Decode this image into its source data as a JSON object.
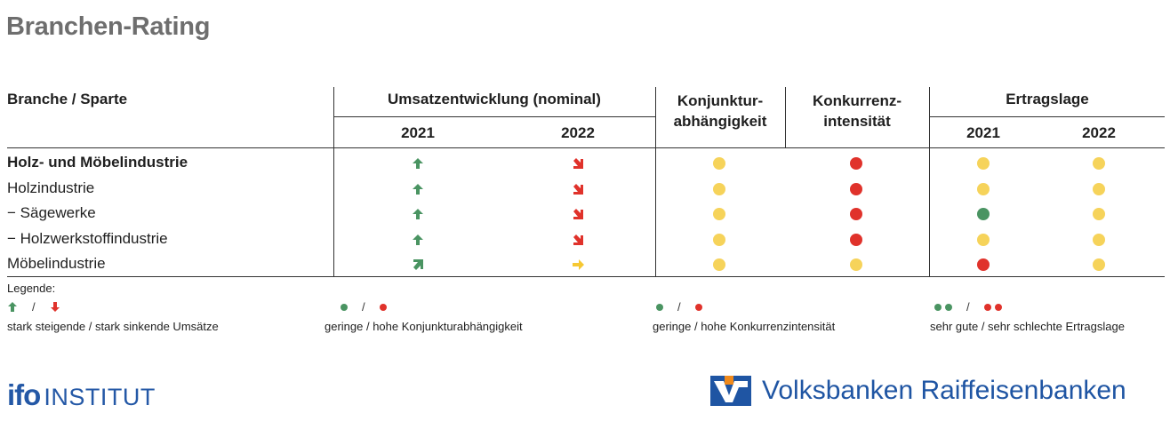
{
  "title": "Branchen-Rating",
  "header": {
    "branche": "Branche / Sparte",
    "umsatz": "Umsatzentwicklung (nominal)",
    "umsatz_2021": "2021",
    "umsatz_2022": "2022",
    "konjunktur": "Konjunktur-\nabhängigkeit",
    "konkurrenz": "Konkurrenz-\nintensität",
    "ertrag": "Ertragslage",
    "ertrag_2021": "2021",
    "ertrag_2022": "2022"
  },
  "rows": [
    {
      "label": "Holz- und Möbelindustrie",
      "bold": true,
      "u2021": "up",
      "u2022": "down-right",
      "konjunktur": "yellow",
      "konkurrenz": "red",
      "e2021": "yellow",
      "e2022": "yellow"
    },
    {
      "label": "Holzindustrie",
      "bold": false,
      "u2021": "up",
      "u2022": "down-right",
      "konjunktur": "yellow",
      "konkurrenz": "red",
      "e2021": "yellow",
      "e2022": "yellow"
    },
    {
      "label": "− Sägewerke",
      "bold": false,
      "u2021": "up",
      "u2022": "down-right",
      "konjunktur": "yellow",
      "konkurrenz": "red",
      "e2021": "green",
      "e2022": "yellow"
    },
    {
      "label": "− Holzwerkstoffindustrie",
      "bold": false,
      "u2021": "up",
      "u2022": "down-right",
      "konjunktur": "yellow",
      "konkurrenz": "red",
      "e2021": "yellow",
      "e2022": "yellow"
    },
    {
      "label": "Möbelindustrie",
      "bold": false,
      "u2021": "up-right",
      "u2022": "right",
      "konjunktur": "yellow",
      "konkurrenz": "yellow",
      "e2021": "red",
      "e2022": "yellow"
    }
  ],
  "legend": {
    "title": "Legende:",
    "slash": "/",
    "items": [
      {
        "label": "stark steigende / stark sinkende Umsätze"
      },
      {
        "label": "geringe / hohe Konjunkturabhängigkeit"
      },
      {
        "label": "geringe / hohe Konkurrenzintensität"
      },
      {
        "label": "sehr gute / sehr schlechte Ertragslage"
      }
    ]
  },
  "logos": {
    "ifo_mark": "ifo",
    "ifo_text": "INSTITUT",
    "vr_text": "Volksbanken Raiffeisenbanken"
  },
  "colors": {
    "green": "#4a9462",
    "red": "#e0322b",
    "yellow": "#f6d35a",
    "arrow_green": "#4a9462",
    "arrow_red": "#e0322b",
    "arrow_yellow": "#f6c832",
    "title_gray": "#6e6e6e",
    "brand_blue": "#1f55a3",
    "brand_orange": "#f08a1c"
  }
}
